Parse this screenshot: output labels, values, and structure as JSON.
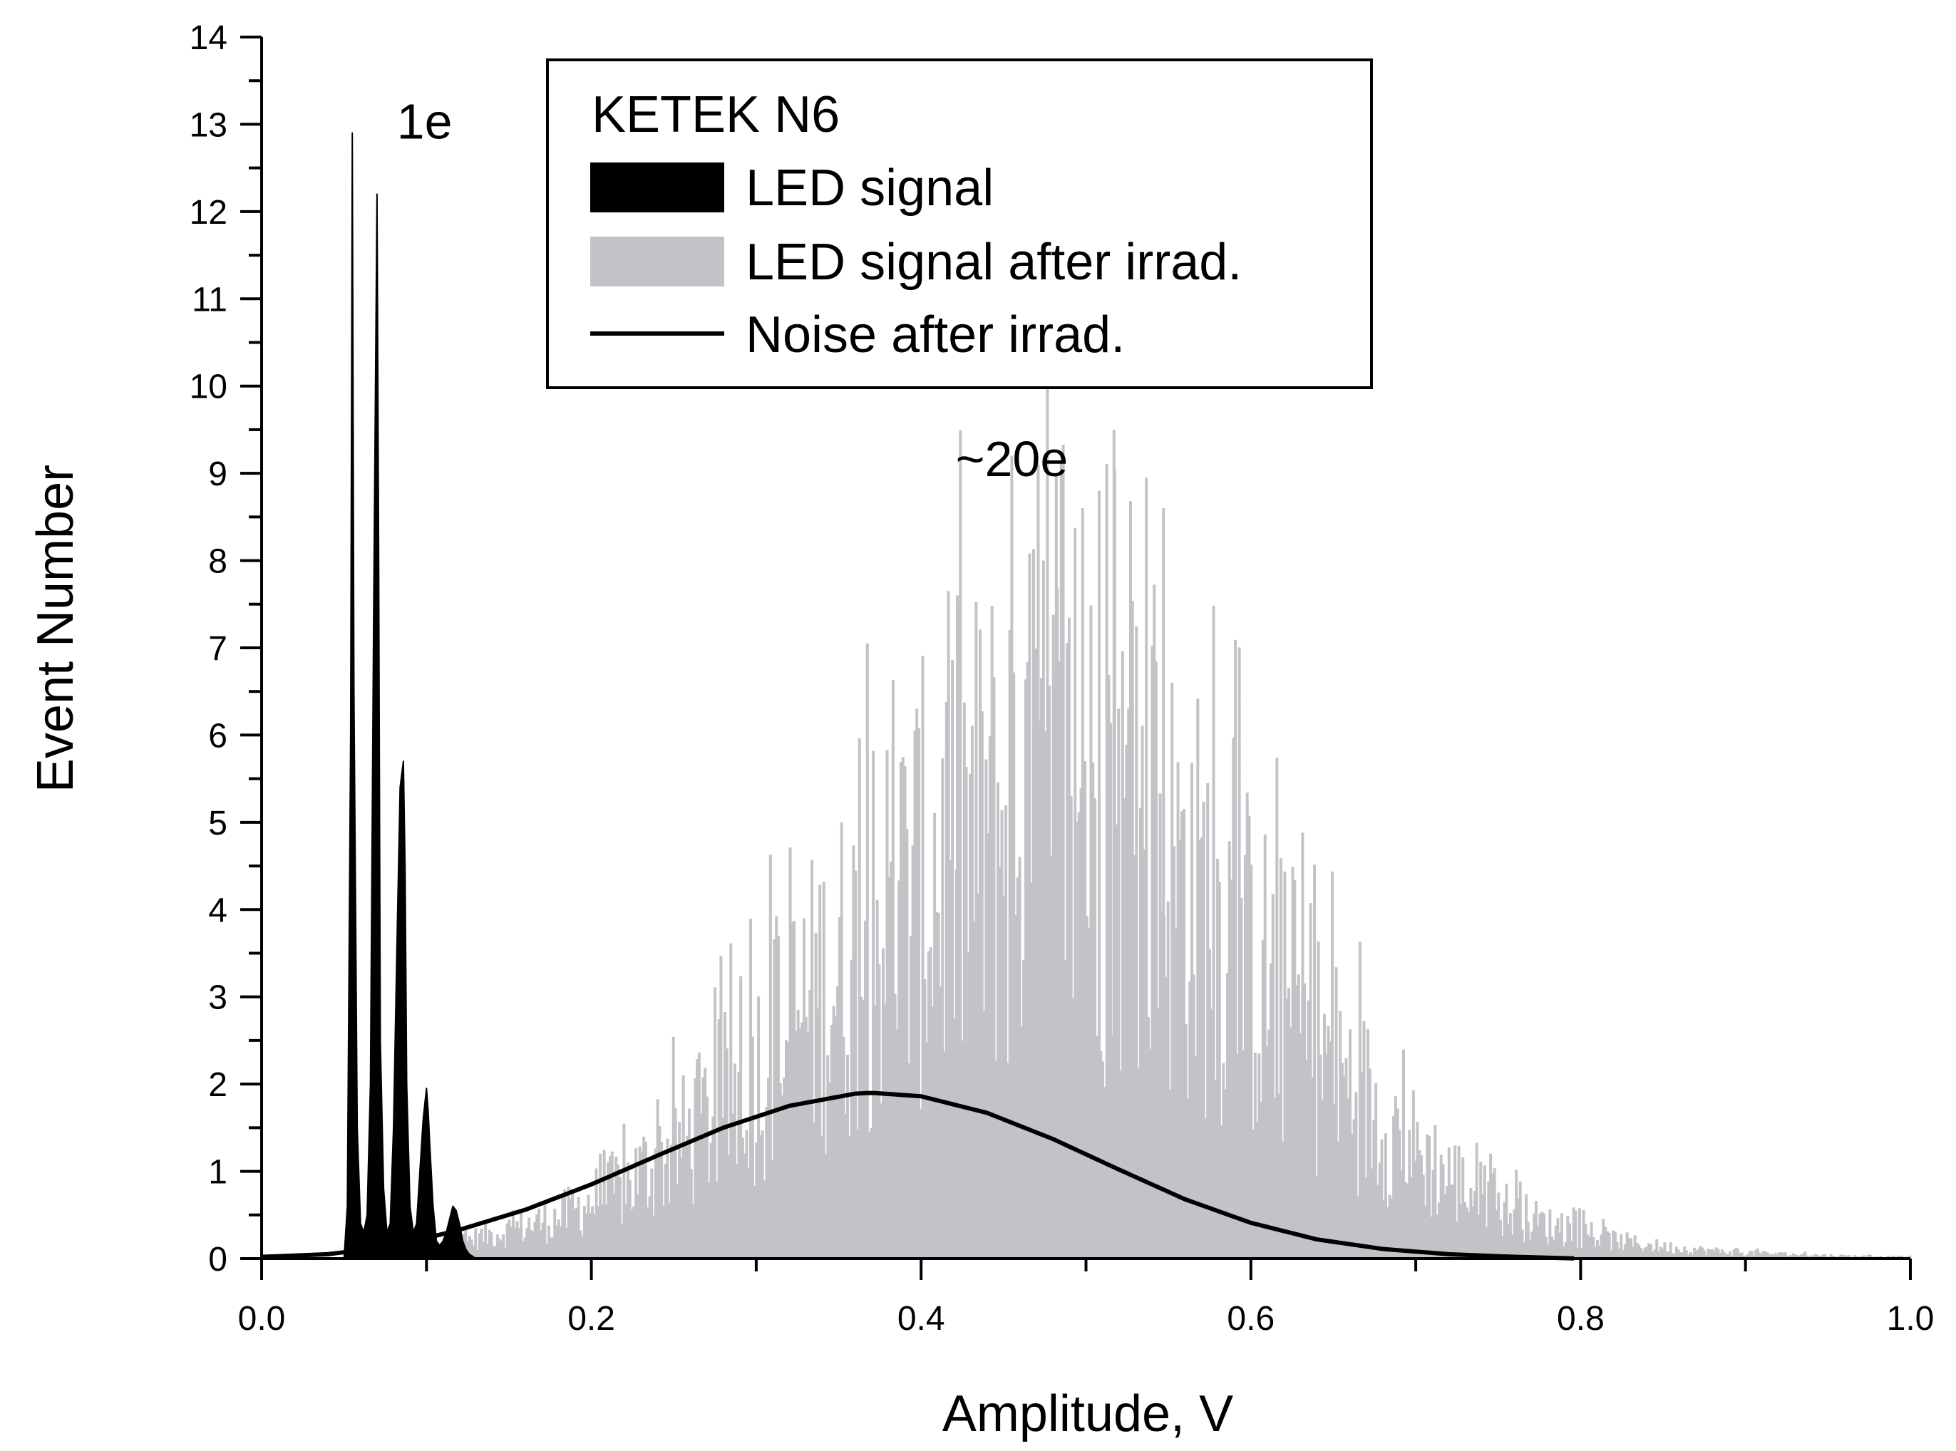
{
  "chart_data": {
    "type": "histogram",
    "title": "",
    "xlabel": "Amplitude, V",
    "ylabel": "Event Number",
    "xlim": [
      0.0,
      1.0
    ],
    "ylim": [
      0,
      14
    ],
    "x_ticks": [
      {
        "value": 0.0,
        "label": "0.0"
      },
      {
        "value": 0.2,
        "label": "0.2"
      },
      {
        "value": 0.4,
        "label": "0.4"
      },
      {
        "value": 0.6,
        "label": "0.6"
      },
      {
        "value": 0.8,
        "label": "0.8"
      },
      {
        "value": 1.0,
        "label": "1.0"
      }
    ],
    "y_ticks": [
      {
        "value": 0,
        "label": "0"
      },
      {
        "value": 1,
        "label": "1"
      },
      {
        "value": 2,
        "label": "2"
      },
      {
        "value": 3,
        "label": "3"
      },
      {
        "value": 4,
        "label": "4"
      },
      {
        "value": 5,
        "label": "5"
      },
      {
        "value": 6,
        "label": "6"
      },
      {
        "value": 7,
        "label": "7"
      },
      {
        "value": 8,
        "label": "8"
      },
      {
        "value": 9,
        "label": "9"
      },
      {
        "value": 10,
        "label": "10"
      },
      {
        "value": 11,
        "label": "11"
      },
      {
        "value": 12,
        "label": "12"
      },
      {
        "value": 13,
        "label": "13"
      },
      {
        "value": 14,
        "label": "14"
      }
    ],
    "legend": {
      "title": "KETEK N6",
      "position": "top-center",
      "entries": [
        {
          "label": "LED signal",
          "style": "filled",
          "color": "#000000"
        },
        {
          "label": "LED signal after irrad.",
          "style": "filled",
          "color": "#c4c2c6"
        },
        {
          "label": "Noise after irrad.",
          "style": "line",
          "color": "#000000"
        }
      ]
    },
    "annotations": [
      {
        "text": "1e",
        "x": 0.082,
        "y": 13.0
      },
      {
        "text": "~20e",
        "x": 0.455,
        "y": 9.15
      }
    ],
    "series": [
      {
        "name": "LED signal",
        "style": "filled",
        "color": "#000000",
        "x": [
          0.05,
          0.052,
          0.054,
          0.055,
          0.056,
          0.058,
          0.06,
          0.062,
          0.064,
          0.066,
          0.068,
          0.07,
          0.071,
          0.072,
          0.074,
          0.076,
          0.078,
          0.08,
          0.082,
          0.084,
          0.086,
          0.087,
          0.088,
          0.09,
          0.092,
          0.094,
          0.096,
          0.098,
          0.1,
          0.101,
          0.102,
          0.104,
          0.106,
          0.108,
          0.11,
          0.112,
          0.114,
          0.116,
          0.118,
          0.12,
          0.122,
          0.124,
          0.126,
          0.13
        ],
        "values": [
          0,
          0.6,
          6.0,
          12.9,
          6.5,
          1.5,
          0.4,
          0.3,
          0.5,
          2.0,
          7.5,
          12.2,
          8.0,
          2.5,
          0.8,
          0.3,
          0.4,
          1.5,
          3.5,
          5.4,
          5.7,
          4.5,
          2.0,
          0.6,
          0.3,
          0.4,
          1.0,
          1.6,
          1.95,
          1.7,
          1.3,
          0.6,
          0.2,
          0.15,
          0.2,
          0.3,
          0.45,
          0.6,
          0.55,
          0.4,
          0.2,
          0.1,
          0.05,
          0
        ]
      },
      {
        "name": "LED signal after irrad.",
        "style": "filled",
        "color": "#c4c2c6",
        "x": [
          0.08,
          0.1,
          0.12,
          0.14,
          0.16,
          0.18,
          0.2,
          0.22,
          0.24,
          0.26,
          0.28,
          0.3,
          0.32,
          0.34,
          0.36,
          0.38,
          0.4,
          0.42,
          0.44,
          0.46,
          0.48,
          0.5,
          0.52,
          0.54,
          0.56,
          0.58,
          0.6,
          0.62,
          0.64,
          0.66,
          0.68,
          0.7,
          0.72,
          0.74,
          0.76,
          0.78,
          0.8,
          0.82,
          0.84,
          0.86,
          0.88,
          0.9,
          0.92,
          0.94,
          0.96,
          0.98,
          1.0
        ],
        "values": [
          0.05,
          0.1,
          0.2,
          0.3,
          0.4,
          0.5,
          0.7,
          0.9,
          1.2,
          1.5,
          1.9,
          2.3,
          2.8,
          3.3,
          3.7,
          4.2,
          4.6,
          5.0,
          5.3,
          5.5,
          5.6,
          5.5,
          5.3,
          5.0,
          4.6,
          4.1,
          3.6,
          3.1,
          2.6,
          2.1,
          1.7,
          1.3,
          1.0,
          0.75,
          0.55,
          0.4,
          0.3,
          0.22,
          0.16,
          0.12,
          0.09,
          0.07,
          0.05,
          0.04,
          0.03,
          0.02,
          0.02
        ],
        "peak_values": [
          {
            "x": 0.422,
            "y": 7.6
          },
          {
            "x": 0.455,
            "y": 9.2
          },
          {
            "x": 0.471,
            "y": 9.1
          },
          {
            "x": 0.482,
            "y": 9.0
          },
          {
            "x": 0.498,
            "y": 8.6
          },
          {
            "x": 0.508,
            "y": 8.8
          },
          {
            "x": 0.517,
            "y": 9.5
          },
          {
            "x": 0.547,
            "y": 8.6
          }
        ]
      },
      {
        "name": "Noise after irrad.",
        "style": "line",
        "color": "#000000",
        "x": [
          0.0,
          0.04,
          0.08,
          0.12,
          0.16,
          0.2,
          0.24,
          0.28,
          0.32,
          0.36,
          0.37,
          0.4,
          0.44,
          0.48,
          0.52,
          0.56,
          0.6,
          0.64,
          0.68,
          0.72,
          0.76,
          0.8
        ],
        "values": [
          0.02,
          0.05,
          0.14,
          0.33,
          0.56,
          0.85,
          1.18,
          1.5,
          1.75,
          1.89,
          1.9,
          1.86,
          1.67,
          1.37,
          1.02,
          0.68,
          0.41,
          0.22,
          0.11,
          0.05,
          0.02,
          0.0
        ]
      }
    ]
  }
}
